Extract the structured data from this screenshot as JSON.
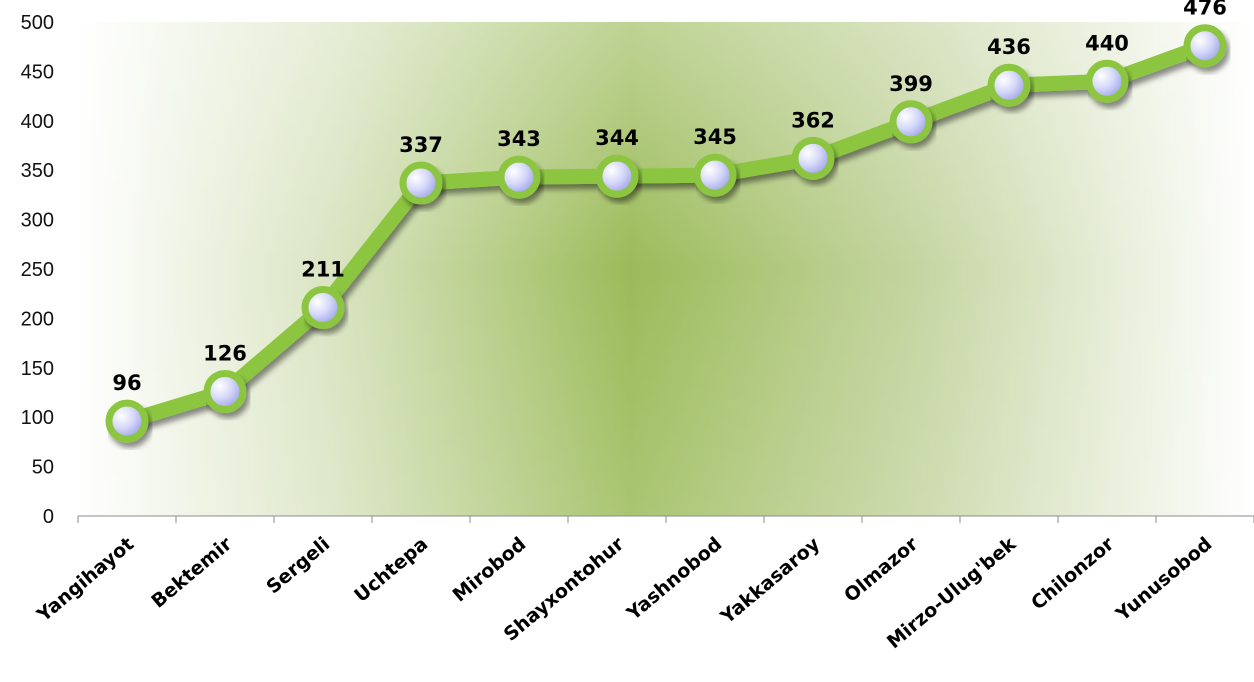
{
  "chart_data": {
    "type": "line",
    "title": "",
    "xlabel": "",
    "ylabel": "",
    "categories": [
      "Yangihayot",
      "Bektemir",
      "Sergeli",
      "Uchtepa",
      "Mirobod",
      "Shayxontohur",
      "Yashnobod",
      "Yakkasaroy",
      "Olmazor",
      "Mirzo-Ulug'bek",
      "Chilonzor",
      "Yunusobod"
    ],
    "series": [
      {
        "values": [
          96,
          126,
          211,
          337,
          343,
          344,
          345,
          362,
          399,
          436,
          440,
          476
        ]
      }
    ],
    "data_labels": [
      "96",
      "126",
      "211",
      "337",
      "343",
      "344",
      "345",
      "362",
      "399",
      "436",
      "440",
      "476"
    ],
    "ylim": [
      0,
      500
    ],
    "yticks": [
      "0",
      "50",
      "100",
      "150",
      "200",
      "250",
      "300",
      "350",
      "400",
      "450",
      "500"
    ],
    "grid": false,
    "legend": "none",
    "colors": {
      "line": "#8cc63f",
      "marker_fill": "#c9cdf6",
      "background": "#9bbb59"
    }
  }
}
